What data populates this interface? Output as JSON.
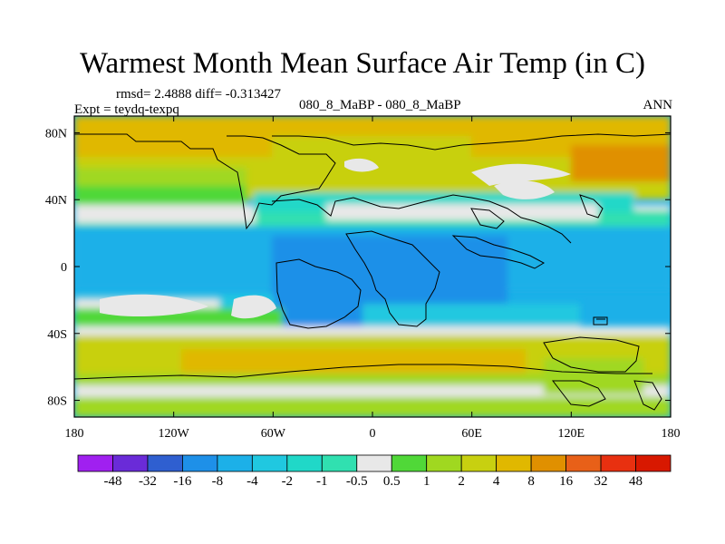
{
  "title": "Warmest Month Mean Surface Air Temp (in C)",
  "stats": {
    "text": "rmsd= 2.4888 diff= -0.313427"
  },
  "experiment": "Expt = teydq-texpq",
  "case_label": "080_8_MaBP - 080_8_MaBP",
  "season": "ANN",
  "map": {
    "projection": "cylindrical-equidistant",
    "lon_range": [
      -180,
      180
    ],
    "lat_range": [
      -90,
      90
    ],
    "lon_ticks": [
      "180",
      "120W",
      "60W",
      "0",
      "60E",
      "120E",
      "180"
    ],
    "lat_ticks": [
      "80N",
      "40N",
      "0",
      "40S",
      "80S"
    ]
  },
  "colorbar": {
    "labels": [
      "-48",
      "-32",
      "-16",
      "-8",
      "-4",
      "-2",
      "-1",
      "-0.5",
      "0.5",
      "1",
      "2",
      "4",
      "8",
      "16",
      "32",
      "48"
    ],
    "colors": [
      "#a020f0",
      "#6a2bd8",
      "#2f5fd0",
      "#1e90e8",
      "#1cb0e8",
      "#20c8e0",
      "#20d8c8",
      "#30e0b0",
      "#e8e8e8",
      "#50d838",
      "#a0d820",
      "#c8d010",
      "#e0b800",
      "#e09000",
      "#e86018",
      "#e83010",
      "#d81800"
    ]
  }
}
